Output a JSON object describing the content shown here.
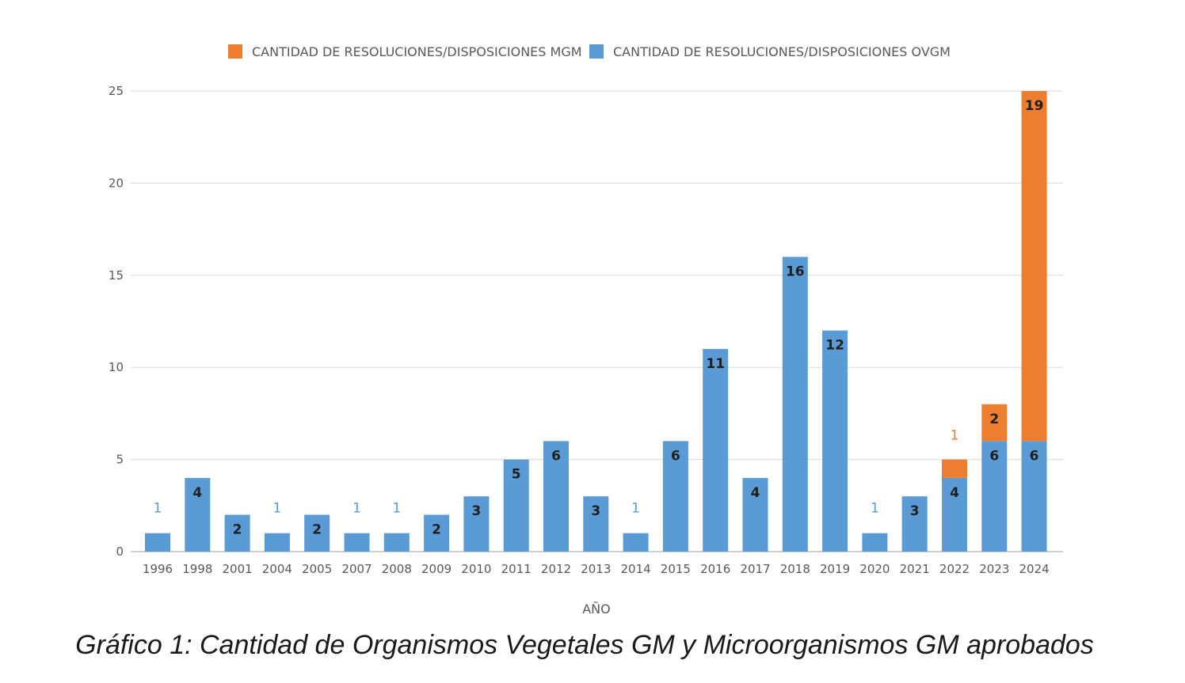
{
  "caption": "Gráfico 1: Cantidad de Organismos Vegetales GM y Microorganismos GM aprobados",
  "colors": {
    "ovgm": "#5b9bd5",
    "mgm": "#ed7d31",
    "grid": "#d9d9d9",
    "axis_text": "#595959"
  },
  "chart_data": {
    "type": "bar",
    "stacked": true,
    "title": "",
    "xlabel": "AÑO",
    "ylabel": "",
    "ylim": [
      0,
      25
    ],
    "yticks": [
      0,
      5,
      10,
      15,
      20,
      25
    ],
    "grid": true,
    "legend_position": "top",
    "categories": [
      "1996",
      "1998",
      "2001",
      "2004",
      "2005",
      "2007",
      "2008",
      "2009",
      "2010",
      "2011",
      "2012",
      "2013",
      "2014",
      "2015",
      "2016",
      "2017",
      "2018",
      "2019",
      "2020",
      "2021",
      "2022",
      "2023",
      "2024"
    ],
    "series": [
      {
        "name": "CANTIDAD DE RESOLUCIONES/DISPOSICIONES OVGM",
        "color": "#5b9bd5",
        "values": [
          1,
          4,
          2,
          1,
          2,
          1,
          1,
          2,
          3,
          5,
          6,
          3,
          1,
          6,
          11,
          4,
          16,
          12,
          1,
          3,
          4,
          6,
          6
        ]
      },
      {
        "name": "CANTIDAD DE RESOLUCIONES/DISPOSICIONES MGM",
        "color": "#ed7d31",
        "values": [
          0,
          0,
          0,
          0,
          0,
          0,
          0,
          0,
          0,
          0,
          0,
          0,
          0,
          0,
          0,
          0,
          0,
          0,
          0,
          0,
          1,
          2,
          19
        ]
      }
    ],
    "legend_order": [
      1,
      0
    ]
  }
}
